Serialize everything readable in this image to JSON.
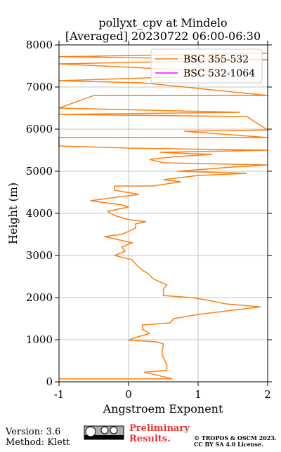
{
  "chart_data": {
    "type": "line",
    "title": "pollyxt_cpv at Mindelo",
    "subtitle": "[Averaged] 20230722 06:00-06:30",
    "x_label": "Angstroem Exponent",
    "y_label": "Height (m)",
    "xlim": [
      -1,
      2
    ],
    "xticks": [
      -1,
      0,
      1,
      2
    ],
    "ylim": [
      0,
      8000
    ],
    "yticks": [
      0,
      1000,
      2000,
      3000,
      4000,
      5000,
      6000,
      7000,
      8000
    ],
    "grid": true,
    "legend": "upper right",
    "series": [
      {
        "name": "BSC 355-532",
        "color": "#ff7f0e",
        "x": [
          -1.0,
          0.63,
          0.48,
          0.22,
          0.55,
          0.55,
          0.48,
          0.5,
          0.4,
          0.0,
          0.1,
          0.3,
          0.2,
          0.2,
          0.6,
          0.65,
          1.0,
          1.5,
          1.9,
          1.4,
          1.1,
          0.9,
          0.5,
          0.5,
          0.55,
          0.35,
          0.3,
          0.2,
          0.1,
          0.05,
          -0.2,
          -0.05,
          -0.1,
          0.05,
          -0.35,
          -0.1,
          0.1,
          0.1,
          0.25,
          0.0,
          -0.2,
          -0.3,
          0.0,
          -0.1,
          -0.55,
          -0.1,
          0.15,
          -0.2,
          -0.2,
          0.35,
          0.75,
          0.5,
          1.0,
          1.7,
          0.7,
          1.5,
          2.0,
          0.5,
          0.3,
          0.4,
          0.7,
          1.2,
          0.45,
          2.0,
          0.0,
          -1.0,
          -1.0,
          2.0,
          0.8,
          2.0,
          1.7,
          -1.0,
          1.6,
          -1.0,
          -0.5,
          2.0,
          0.2,
          -1.0,
          0.9,
          1.5,
          -1.0,
          2.0,
          -1.0,
          2.0
        ],
        "values": [
          70,
          70,
          130,
          230,
          270,
          400,
          650,
          900,
          950,
          990,
          1050,
          1150,
          1250,
          1350,
          1400,
          1500,
          1600,
          1700,
          1780,
          1850,
          1950,
          2000,
          2050,
          2200,
          2300,
          2450,
          2550,
          2650,
          2800,
          2900,
          3000,
          3100,
          3200,
          3300,
          3450,
          3500,
          3650,
          3750,
          3800,
          3850,
          3950,
          4050,
          4150,
          4200,
          4300,
          4400,
          4450,
          4550,
          4650,
          4650,
          4750,
          4800,
          4900,
          4950,
          5000,
          5100,
          5150,
          5200,
          5280,
          5300,
          5350,
          5400,
          5450,
          5500,
          5550,
          5600,
          5800,
          5800,
          5950,
          5980,
          6300,
          6350,
          6400,
          6500,
          6800,
          6800,
          7100,
          7150,
          7250,
          7350,
          7550,
          7650,
          7720,
          7800
        ]
      },
      {
        "name": "BSC 532-1064",
        "color": "#ff00ff",
        "x": [],
        "values": []
      }
    ]
  },
  "footer": {
    "version": "Version: 3.6",
    "method": "Method: Klett",
    "preliminary": [
      "Preliminary",
      "Results."
    ],
    "license": [
      "© TROPOS & OSCM 2023.",
      "CC BY SA 4.0 License."
    ]
  }
}
